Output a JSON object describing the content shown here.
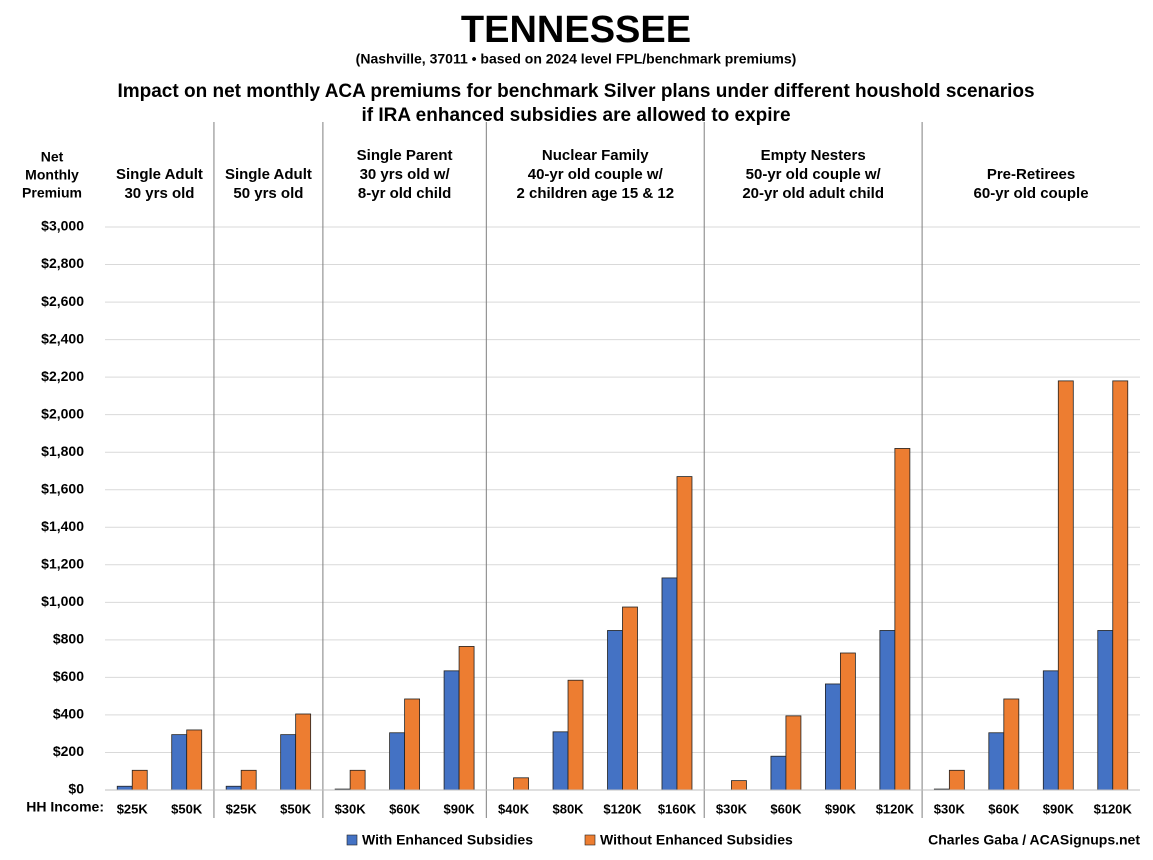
{
  "chart_data": {
    "type": "bar",
    "title": "TENNESSEE",
    "subtitle": "(Nashville, 37011 • based on 2024 level FPL/benchmark premiums)",
    "heading": [
      "Impact on net monthly ACA premiums for benchmark Silver plans under different houshold scenarios",
      "if IRA enhanced subsidies are allowed to expire"
    ],
    "y_label": [
      "Net",
      "Monthly",
      "Premium"
    ],
    "x_label": "HH Income:",
    "source": "Charles Gaba / ACASignups.net",
    "groups": [
      {
        "label": [
          "Single Adult",
          "30 yrs old"
        ],
        "categories": [
          "$25K",
          "$50K"
        ]
      },
      {
        "label": [
          "Single Adult",
          "50 yrs old"
        ],
        "categories": [
          "$25K",
          "$50K"
        ]
      },
      {
        "label": [
          "Single Parent",
          "30 yrs old w/",
          "8-yr old child"
        ],
        "categories": [
          "$30K",
          "$60K",
          "$90K"
        ]
      },
      {
        "label": [
          "Nuclear Family",
          "40-yr old couple w/",
          "2 children age 15 & 12"
        ],
        "categories": [
          "$40K",
          "$80K",
          "$120K",
          "$160K"
        ]
      },
      {
        "label": [
          "Empty Nesters",
          "50-yr old couple w/",
          "20-yr old adult child"
        ],
        "categories": [
          "$30K",
          "$60K",
          "$90K",
          "$120K"
        ]
      },
      {
        "label": [
          "Pre-Retirees",
          "60-yr old couple"
        ],
        "categories": [
          "$30K",
          "$60K",
          "$90K",
          "$120K"
        ]
      }
    ],
    "series": [
      {
        "name": "With Enhanced Subsidies",
        "color": "#4472c4",
        "values": [
          20,
          295,
          20,
          295,
          5,
          305,
          635,
          0,
          310,
          850,
          1130,
          0,
          180,
          565,
          850,
          5,
          305,
          635,
          850
        ]
      },
      {
        "name": "Without Enhanced Subsidies",
        "color": "#ed7d31",
        "values": [
          105,
          320,
          105,
          405,
          105,
          485,
          765,
          65,
          585,
          975,
          1670,
          50,
          395,
          730,
          1820,
          105,
          485,
          2180,
          2180
        ]
      }
    ],
    "ylim": [
      0,
      3000
    ],
    "yticks": [
      {
        "value": 0,
        "label": "$0"
      },
      {
        "value": 200,
        "label": "$200"
      },
      {
        "value": 400,
        "label": "$400"
      },
      {
        "value": 600,
        "label": "$600"
      },
      {
        "value": 800,
        "label": "$800"
      },
      {
        "value": 1000,
        "label": "$1,000"
      },
      {
        "value": 1200,
        "label": "$1,200"
      },
      {
        "value": 1400,
        "label": "$1,400"
      },
      {
        "value": 1600,
        "label": "$1,600"
      },
      {
        "value": 1800,
        "label": "$1,800"
      },
      {
        "value": 2000,
        "label": "$2,000"
      },
      {
        "value": 2200,
        "label": "$2,200"
      },
      {
        "value": 2400,
        "label": "$2,400"
      },
      {
        "value": 2600,
        "label": "$2,600"
      },
      {
        "value": 2800,
        "label": "$2,800"
      },
      {
        "value": 3000,
        "label": "$3,000"
      }
    ],
    "grid": true
  }
}
